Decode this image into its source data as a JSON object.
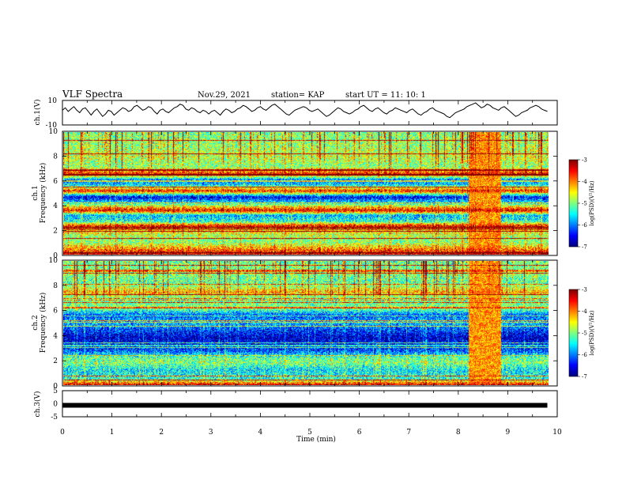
{
  "header": {
    "title": "VLF Spectra",
    "date": "Nov.29, 2021",
    "station": "station= KAP",
    "start": "start  UT =   11: 10: 1"
  },
  "chart_data": [
    {
      "type": "line",
      "panel": "ch1-waveform",
      "ylabel": "ch.1(V)",
      "ylim": [
        -10,
        10
      ],
      "y_ticks": [
        "10",
        "-10"
      ],
      "xlim": [
        0,
        10
      ],
      "x_end": 9.8,
      "samples": [
        2,
        4,
        1,
        3,
        5,
        2,
        0,
        3,
        4,
        1,
        -2,
        1,
        3,
        0,
        -3,
        -1,
        2,
        1,
        -2,
        0,
        2,
        4,
        3,
        1,
        2,
        5,
        6,
        4,
        2,
        3,
        5,
        4,
        1,
        -1,
        2,
        3,
        1,
        0,
        2,
        4,
        5,
        7,
        6,
        3,
        2,
        4,
        3,
        1,
        0,
        2,
        1,
        -1,
        1,
        2,
        0,
        -2,
        1,
        3,
        2,
        0,
        1,
        3,
        4,
        6,
        5,
        3,
        1,
        2,
        4,
        5,
        3,
        2,
        4,
        6,
        7,
        5,
        3,
        1,
        -1,
        -2,
        0,
        2,
        3,
        4,
        5,
        4,
        2,
        1,
        2,
        3,
        1,
        -1,
        -3,
        -2,
        0,
        2,
        4,
        3,
        1,
        0,
        -1,
        0,
        2,
        3,
        5,
        6,
        4,
        2,
        1,
        3,
        4,
        2,
        0,
        -1,
        1,
        2,
        4,
        3,
        2,
        1,
        0,
        2,
        3,
        1,
        -1,
        -2,
        0,
        1,
        3,
        4,
        2,
        1,
        0,
        -1,
        -3,
        -4,
        -2,
        0,
        1,
        2,
        3,
        5,
        6,
        7,
        8,
        6,
        4,
        5,
        7,
        6,
        4,
        3,
        2,
        4,
        5,
        3,
        1,
        -1,
        -3,
        -2,
        0,
        1,
        2,
        4,
        5,
        6,
        5,
        3,
        2,
        1
      ]
    },
    {
      "type": "heatmap",
      "panel": "ch1-spectrogram",
      "ylabel": "ch.1\nFrequency (kHz)",
      "ylabel_line1": "ch.1",
      "ylabel_line2": "Frequency (kHz)",
      "ylim": [
        0,
        10
      ],
      "y_ticks": [
        "0",
        "2",
        "4",
        "6",
        "8",
        "10"
      ],
      "xlim": [
        0,
        10
      ],
      "x_end": 9.8,
      "colorbar": {
        "min": -7,
        "max": -3,
        "ticks": [
          "-3",
          "-4",
          "-5",
          "-6",
          "-7"
        ],
        "label": "log(PSD)(V²/Hz)"
      },
      "level_profile_kHz": [
        {
          "f": 0.0,
          "v": -3.3
        },
        {
          "f": 0.4,
          "v": -4.0
        },
        {
          "f": 1.0,
          "v": -5.0
        },
        {
          "f": 1.5,
          "v": -4.8
        },
        {
          "f": 2.0,
          "v": -4.3
        },
        {
          "f": 2.3,
          "v": -3.4
        },
        {
          "f": 2.7,
          "v": -5.4
        },
        {
          "f": 3.2,
          "v": -5.8
        },
        {
          "f": 3.6,
          "v": -3.4
        },
        {
          "f": 4.2,
          "v": -5.5
        },
        {
          "f": 4.7,
          "v": -6.6
        },
        {
          "f": 5.2,
          "v": -3.6
        },
        {
          "f": 5.7,
          "v": -5.6
        },
        {
          "f": 6.1,
          "v": -6.1
        },
        {
          "f": 6.6,
          "v": -3.6
        },
        {
          "f": 7.2,
          "v": -5.0
        },
        {
          "f": 8.0,
          "v": -4.7
        },
        {
          "f": 9.0,
          "v": -4.9
        },
        {
          "f": 10.0,
          "v": -5.0
        }
      ],
      "burst_interval_min": [
        8.2,
        8.85
      ]
    },
    {
      "type": "heatmap",
      "panel": "ch2-spectrogram",
      "ylabel": "ch.2\nFrequency (kHz)",
      "ylabel_line1": "ch.2",
      "ylabel_line2": "Frequency (kHz)",
      "ylim": [
        0,
        10
      ],
      "y_ticks": [
        "0",
        "2",
        "4",
        "6",
        "8",
        "10"
      ],
      "xlim": [
        0,
        10
      ],
      "x_end": 9.8,
      "colorbar": {
        "min": -7,
        "max": -3,
        "ticks": [
          "-3",
          "-4",
          "-5",
          "-6",
          "-7"
        ],
        "label": "log(PSD)(V²/Hz)"
      },
      "level_profile_kHz": [
        {
          "f": 0.0,
          "v": -3.4
        },
        {
          "f": 0.5,
          "v": -5.4
        },
        {
          "f": 1.2,
          "v": -5.6
        },
        {
          "f": 1.8,
          "v": -5.0
        },
        {
          "f": 2.2,
          "v": -5.2
        },
        {
          "f": 2.8,
          "v": -6.3
        },
        {
          "f": 3.3,
          "v": -6.5
        },
        {
          "f": 3.8,
          "v": -6.8
        },
        {
          "f": 4.3,
          "v": -6.4
        },
        {
          "f": 5.0,
          "v": -5.8
        },
        {
          "f": 5.6,
          "v": -6.2
        },
        {
          "f": 6.2,
          "v": -5.0
        },
        {
          "f": 7.0,
          "v": -5.2
        },
        {
          "f": 7.5,
          "v": -4.2
        },
        {
          "f": 8.2,
          "v": -5.2
        },
        {
          "f": 9.0,
          "v": -5.0
        },
        {
          "f": 10.0,
          "v": -5.1
        }
      ],
      "burst_interval_min": [
        8.2,
        8.85
      ]
    },
    {
      "type": "line",
      "panel": "ch3-waveform",
      "ylabel": "ch.3(V)",
      "ylim": [
        -5,
        5
      ],
      "y_ticks": [
        "5",
        "0",
        "-5"
      ],
      "xlim": [
        0,
        10
      ],
      "x_end": 9.8,
      "constant_value": -0.6,
      "xlabel": "Time  (min)",
      "x_ticks": [
        "0",
        "1",
        "2",
        "3",
        "4",
        "5",
        "6",
        "7",
        "8",
        "9",
        "10"
      ]
    }
  ]
}
